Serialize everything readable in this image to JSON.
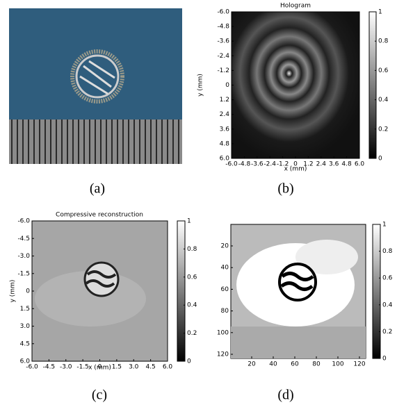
{
  "panels": [
    {
      "label": "(a)"
    },
    {
      "label": "(b)",
      "title": "Hologram",
      "xlabel": "x (mm)",
      "ylabel": "y (mm)",
      "xticks": [
        "-6.0",
        "-4.8",
        "-3.6",
        "-2.4",
        "-1.2",
        "0",
        "1.2",
        "2.4",
        "3.6",
        "4.8",
        "6.0"
      ],
      "yticks": [
        "-6.0",
        "-4.8",
        "-3.6",
        "-2.4",
        "-1.2",
        "0",
        "1.2",
        "2.4",
        "3.6",
        "4.8",
        "6.0"
      ],
      "cbar_ticks": [
        "0",
        "0.2",
        "0.4",
        "0.6",
        "0.8",
        "1"
      ]
    },
    {
      "label": "(c)",
      "title": "Compressive reconstruction",
      "xlabel": "x (mm)",
      "ylabel": "y (mm)",
      "xticks": [
        "-6.0",
        "-4.5",
        "-3.0",
        "-1.5",
        "0",
        "1.5",
        "3.0",
        "4.5",
        "6.0"
      ],
      "yticks": [
        "-6.0",
        "-4.5",
        "-3.0",
        "-1.5",
        "0",
        "1.5",
        "3.0",
        "4.5",
        "6.0"
      ],
      "cbar_ticks": [
        "0",
        "0.2",
        "0.4",
        "0.6",
        "0.8",
        "1"
      ]
    },
    {
      "label": "(d)",
      "xticks": [
        "20",
        "40",
        "60",
        "80",
        "100",
        "120"
      ],
      "yticks": [
        "20",
        "40",
        "60",
        "80",
        "100",
        "120"
      ],
      "cbar_ticks": [
        "0",
        "0.2",
        "0.4",
        "0.6",
        "0.8",
        "1"
      ]
    }
  ]
}
